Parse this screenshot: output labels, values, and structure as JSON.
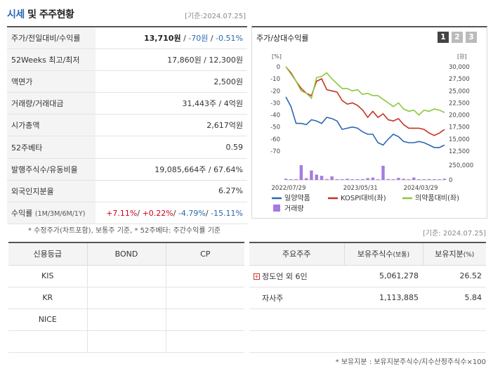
{
  "header": {
    "title_blue": "시세",
    "title_dark": " 및 주주현황",
    "date": "[기준:2024.07.25]"
  },
  "price_rows": [
    {
      "label": "주가/전일대비/수익률",
      "price": "13,710원",
      "sep1": " / ",
      "change": "-70원",
      "sep2": " / ",
      "pct": "-0.51%"
    },
    {
      "label": "52Weeks 최고/최저",
      "value": "17,860원 / 12,300원"
    },
    {
      "label": "액면가",
      "value": "2,500원"
    },
    {
      "label": "거래량/거래대금",
      "value": "31,443주 / 4억원"
    },
    {
      "label": "시가총액",
      "value": "2,617억원"
    },
    {
      "label": "52주베타",
      "value": "0.59"
    },
    {
      "label": "발행주식수/유동비율",
      "value": "19,085,664주 / 67.64%"
    },
    {
      "label": "외국인지분율",
      "value": "6.27%"
    }
  ],
  "return_row": {
    "label": "수익률",
    "period": "(1M/3M/6M/1Y)",
    "r1": "+7.11%",
    "s1": "/ ",
    "r2": "+0.22%",
    "s2": "/ ",
    "r3": "-4.79%",
    "s3": "/ ",
    "r4": "-15.11%"
  },
  "note1": "* 수정주가(차트포함), 보통주 기준, * 52주베타: 주간수익률 기준",
  "chart_panel": {
    "title": "주가/상대수익률",
    "pages": [
      "1",
      "2",
      "3"
    ],
    "active_page": "1"
  },
  "chart_data": {
    "type": "line",
    "y_left_unit": "[%]",
    "y_right_unit": "[원]",
    "y_left_ticks": [
      "0",
      "-10",
      "-20",
      "-30",
      "-40",
      "-50",
      "-60",
      "-70"
    ],
    "y_right_ticks": [
      "30,000",
      "27,500",
      "25,000",
      "22,500",
      "20,000",
      "17,500",
      "15,000",
      "12,500"
    ],
    "volume_ticks": [
      "250,000",
      "0"
    ],
    "x_tick_labels": [
      "2022/07/29",
      "2023/05/31",
      "2024/03/29"
    ],
    "ylim_left": [
      -70,
      0
    ],
    "ylim_right": [
      12500,
      30000
    ],
    "series": [
      {
        "name": "일양약품",
        "color": "#2a67b4",
        "axis": "left",
        "values": [
          -25,
          -33,
          -47,
          -47,
          -48,
          -44,
          -45,
          -47,
          -42,
          -43,
          -45,
          -52,
          -51,
          -50,
          -51,
          -54,
          -56,
          -56,
          -63,
          -65,
          -60,
          -56,
          -58,
          -62,
          -63,
          -63,
          -62,
          -63,
          -65,
          -67,
          -67,
          -65
        ]
      },
      {
        "name": "KOSPI대비(좌)",
        "color": "#c8321e",
        "axis": "left",
        "values": [
          0,
          -5,
          -12,
          -18,
          -22,
          -24,
          -12,
          -10,
          -19,
          -20,
          -21,
          -28,
          -31,
          -30,
          -32,
          -36,
          -42,
          -37,
          -42,
          -39,
          -44,
          -45,
          -43,
          -48,
          -51,
          -51,
          -51,
          -52,
          -55,
          -57,
          -55,
          -52
        ]
      },
      {
        "name": "의약품대비(좌)",
        "color": "#8cc83c",
        "axis": "left",
        "values": [
          0,
          -6,
          -12,
          -20,
          -22,
          -26,
          -9,
          -8,
          -5,
          -10,
          -14,
          -18,
          -18,
          -20,
          -19,
          -23,
          -22,
          -24,
          -24,
          -27,
          -30,
          -33,
          -30,
          -35,
          -37,
          -36,
          -40,
          -36,
          -37,
          -35,
          -36,
          -38
        ]
      }
    ],
    "volume": {
      "name": "거래량",
      "color": "#a47be0",
      "values": [
        20000,
        8000,
        12000,
        260000,
        30000,
        160000,
        90000,
        70000,
        15000,
        60000,
        12000,
        10000,
        20000,
        8000,
        10000,
        14000,
        30000,
        40000,
        10000,
        240000,
        15000,
        12000,
        35000,
        20000,
        12000,
        40000,
        10000,
        8000,
        15000,
        9000,
        6000,
        20000
      ]
    },
    "legend": [
      "일양약품",
      "KOSPI대비(좌)",
      "의약품대비(좌)",
      "거래량"
    ]
  },
  "date2": "[기준: 2024.07.25]",
  "credit": {
    "headers": [
      "신용등급",
      "BOND",
      "CP"
    ],
    "rows": [
      [
        "KIS",
        "",
        ""
      ],
      [
        "KR",
        "",
        ""
      ],
      [
        "NICE",
        "",
        ""
      ],
      [
        "",
        "",
        ""
      ]
    ]
  },
  "holders": {
    "headers": [
      "주요주주",
      "보유주식수",
      "(보통)",
      "보유지분",
      "(%)"
    ],
    "rows": [
      {
        "name": "정도언 외 6인",
        "shares": "5,061,278",
        "pct": "26.52",
        "expandable": true
      },
      {
        "name": "자사주",
        "shares": "1,113,885",
        "pct": "5.84",
        "expandable": false
      },
      {
        "name": "",
        "shares": "",
        "pct": "",
        "expandable": false
      },
      {
        "name": "",
        "shares": "",
        "pct": "",
        "expandable": false
      }
    ]
  },
  "note2": "* 보유지분 : 보유지분주식수/지수산정주식수×100"
}
